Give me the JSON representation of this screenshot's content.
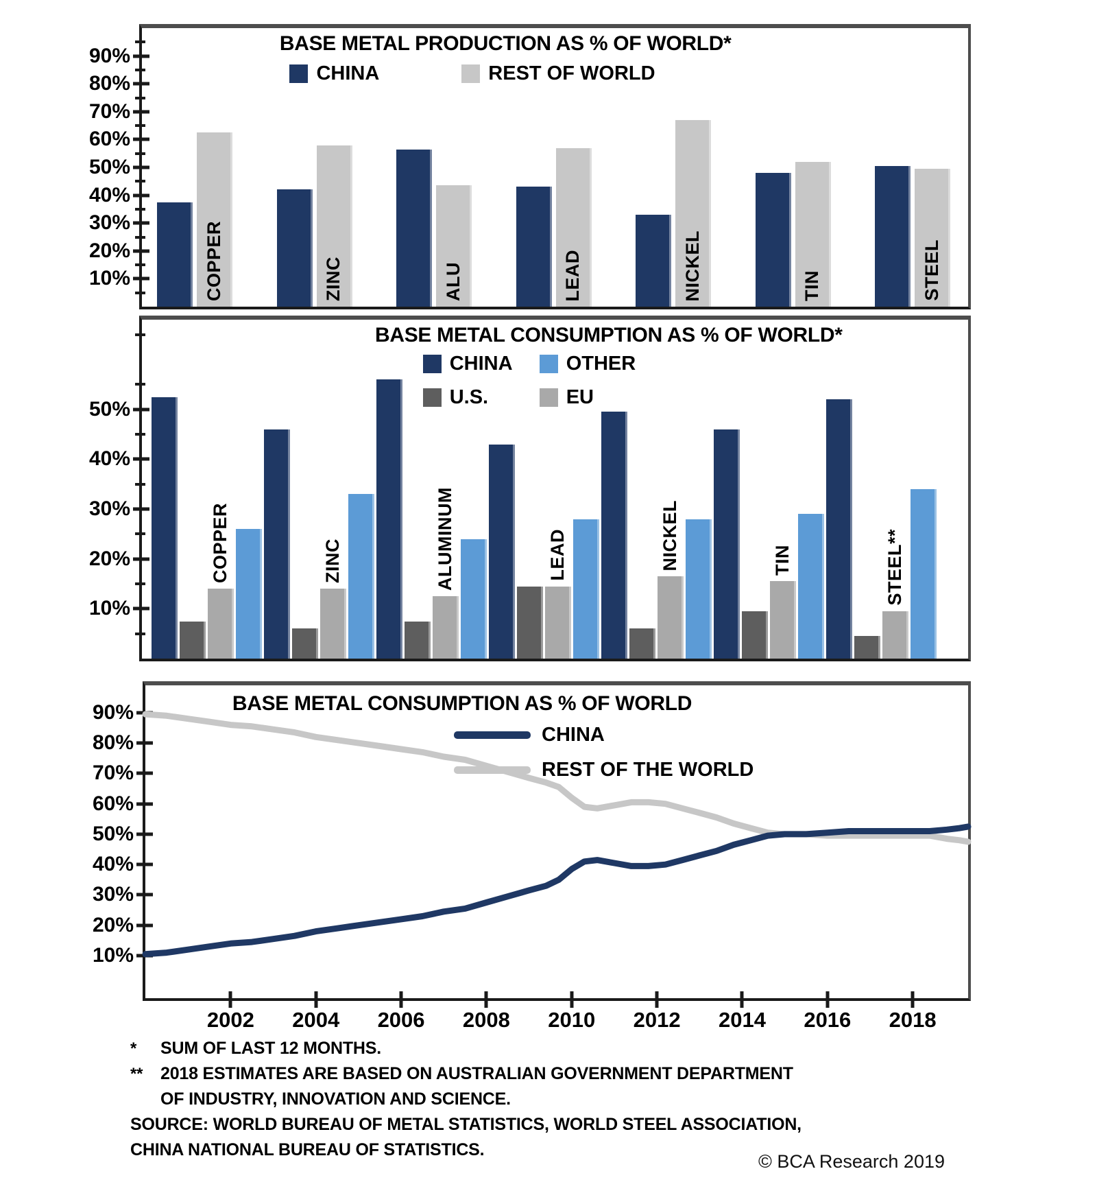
{
  "colors": {
    "china_navy": "#1F3864",
    "rest_of_world_gray": "#C7C7C7",
    "us_dark_gray": "#5E5E5E",
    "eu_gray": "#A9A9A9",
    "other_blue": "#5C9BD6",
    "axis_black": "#1a1a1a"
  },
  "chart_data": [
    {
      "type": "bar",
      "title": "BASE METAL PRODUCTION AS % OF WORLD*",
      "categories": [
        "COPPER",
        "ZINC",
        "ALU",
        "LEAD",
        "NICKEL",
        "TIN",
        "STEEL"
      ],
      "series": [
        {
          "name": "CHINA",
          "color": "#1F3864",
          "values": [
            37.5,
            42,
            56.5,
            43,
            33,
            48,
            50.5
          ]
        },
        {
          "name": "REST OF WORLD",
          "color": "#C7C7C7",
          "values": [
            62.5,
            58,
            43.5,
            57,
            67,
            52,
            49.5
          ]
        }
      ],
      "ylim": [
        0,
        100
      ],
      "yticks": [
        10,
        20,
        30,
        40,
        50,
        60,
        70,
        80,
        90
      ],
      "ytick_suffix": "%",
      "legend_position": "top-center",
      "grid": false
    },
    {
      "type": "bar",
      "title": "BASE METAL CONSUMPTION AS % OF WORLD*",
      "categories": [
        "COPPER",
        "ZINC",
        "ALUMINUM",
        "LEAD",
        "NICKEL",
        "TIN",
        "STEEL**"
      ],
      "series": [
        {
          "name": "CHINA",
          "color": "#1F3864",
          "values": [
            52.5,
            46,
            56,
            43,
            49.5,
            46,
            52
          ]
        },
        {
          "name": "U.S.",
          "color": "#5E5E5E",
          "values": [
            7.5,
            6,
            7.5,
            14.5,
            6,
            9.5,
            4.5
          ]
        },
        {
          "name": "EU",
          "color": "#A9A9A9",
          "values": [
            14,
            14,
            12.5,
            14.5,
            16.5,
            15.5,
            9.5
          ]
        },
        {
          "name": "OTHER",
          "color": "#5C9BD6",
          "values": [
            26,
            33,
            24,
            28,
            28,
            29,
            34
          ]
        }
      ],
      "ylim": [
        0,
        68
      ],
      "yticks": [
        10,
        20,
        30,
        40,
        50
      ],
      "ytick_suffix": "%",
      "legend_position": "top-right",
      "grid": false
    },
    {
      "type": "line",
      "title": "BASE METAL CONSUMPTION AS % OF WORLD",
      "xlim": [
        2000,
        2019.3
      ],
      "ylim": [
        -4,
        99
      ],
      "xticks": [
        2002,
        2004,
        2006,
        2008,
        2010,
        2012,
        2014,
        2016,
        2018
      ],
      "yticks": [
        10,
        20,
        30,
        40,
        50,
        60,
        70,
        80,
        90
      ],
      "ytick_suffix": "%",
      "x": [
        2000,
        2000.5,
        2001,
        2001.5,
        2002,
        2002.5,
        2003,
        2003.5,
        2004,
        2004.5,
        2005,
        2005.5,
        2006,
        2006.5,
        2007,
        2007.5,
        2008,
        2008.5,
        2009,
        2009.4,
        2009.7,
        2010,
        2010.3,
        2010.6,
        2011,
        2011.4,
        2011.8,
        2012.2,
        2012.6,
        2013,
        2013.4,
        2013.8,
        2014.2,
        2014.6,
        2015,
        2015.5,
        2016,
        2016.5,
        2017,
        2017.5,
        2018,
        2018.4,
        2018.8,
        2019.1,
        2019.3
      ],
      "series": [
        {
          "name": "CHINA",
          "color": "#1F3864",
          "y": [
            10.5,
            11,
            12,
            13,
            14,
            14.5,
            15.5,
            16.5,
            18,
            19,
            20,
            21,
            22,
            23,
            24.5,
            25.5,
            27.5,
            29.5,
            31.5,
            33,
            35,
            38.5,
            41,
            41.5,
            40.5,
            39.5,
            39.5,
            40,
            41.5,
            43,
            44.5,
            46.5,
            48,
            49.5,
            50,
            50,
            50.5,
            51,
            51,
            51,
            51,
            51,
            51.5,
            52,
            52.5
          ]
        },
        {
          "name": "REST OF THE WORLD",
          "color": "#C7C7C7",
          "y": [
            89.5,
            89,
            88,
            87,
            86,
            85.5,
            84.5,
            83.5,
            82,
            81,
            80,
            79,
            78,
            77,
            75.5,
            74.5,
            72.5,
            70.5,
            68.5,
            67,
            65.5,
            62,
            59,
            58.5,
            59.5,
            60.5,
            60.5,
            60,
            58.5,
            57,
            55.5,
            53.5,
            52,
            50.5,
            50,
            50,
            49.5,
            49.5,
            49.5,
            49.5,
            49.5,
            49.5,
            48.5,
            48,
            47.5
          ]
        }
      ],
      "grid": false
    }
  ],
  "footnotes": {
    "star1_mark": "*",
    "star1_text": "SUM OF LAST 12 MONTHS.",
    "star2_mark": "**",
    "star2_line1": "2018 ESTIMATES ARE BASED ON AUSTRALIAN GOVERNMENT DEPARTMENT",
    "star2_line2": "OF INDUSTRY, INNOVATION AND SCIENCE.",
    "source_line1": "SOURCE: WORLD BUREAU OF METAL STATISTICS, WORLD STEEL ASSOCIATION,",
    "source_line2": "CHINA NATIONAL BUREAU OF STATISTICS."
  },
  "copyright": "© BCA Research 2019"
}
